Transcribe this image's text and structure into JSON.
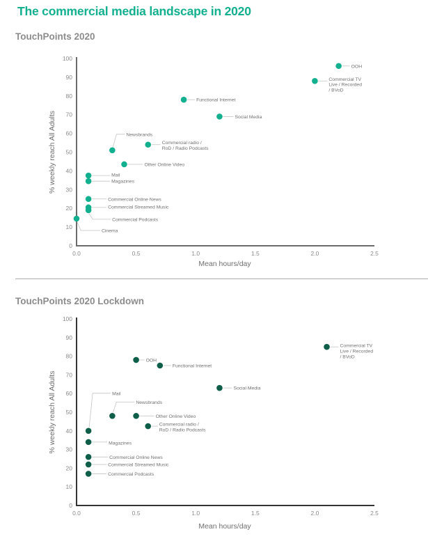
{
  "page": {
    "title": "The commercial media landscape in 2020"
  },
  "chart_data": [
    {
      "type": "scatter",
      "title": "TouchPoints 2020",
      "xlabel": "Mean hours/day",
      "ylabel": "% weekly reach All Adults",
      "xlim": [
        0,
        2.5
      ],
      "ylim": [
        0,
        100
      ],
      "xticks": [
        "0.0",
        "0.5",
        "1.0",
        "1.5",
        "2.0",
        "2.5"
      ],
      "yticks": [
        "0",
        "10",
        "20",
        "30",
        "40",
        "50",
        "60",
        "70",
        "80",
        "90",
        "100"
      ],
      "grid": false,
      "marker_color": "#12b08f",
      "points": [
        {
          "label": "OOH",
          "x": 2.2,
          "y": 96
        },
        {
          "label": "Commercial TV Live / Recorded / BVoD",
          "lines": [
            "Commercial TV",
            "Live / Recorded",
            "/ BVoD"
          ],
          "x": 2.0,
          "y": 88
        },
        {
          "label": "Functional Internet",
          "x": 0.9,
          "y": 78
        },
        {
          "label": "Social Media",
          "x": 1.2,
          "y": 69
        },
        {
          "label": "Newsbrands",
          "x": 0.3,
          "y": 51
        },
        {
          "label": "Commercial radio / RoD / Radio Podcasts",
          "lines": [
            "Commercial radio /",
            "RoD / Radio Podcasts"
          ],
          "x": 0.6,
          "y": 54
        },
        {
          "label": "Other Online Video",
          "x": 0.4,
          "y": 43.5
        },
        {
          "label": "Mail",
          "x": 0.1,
          "y": 37.5
        },
        {
          "label": "Magazines",
          "x": 0.1,
          "y": 34.5
        },
        {
          "label": "Commercial Online News",
          "x": 0.1,
          "y": 25
        },
        {
          "label": "Commercial Streamed Music",
          "x": 0.1,
          "y": 20.5
        },
        {
          "label": "Commercial Podcasts",
          "x": 0.1,
          "y": 19
        },
        {
          "label": "Cinema",
          "x": 0.0,
          "y": 14.5
        }
      ]
    },
    {
      "type": "scatter",
      "title": "TouchPoints 2020 Lockdown",
      "xlabel": "Mean hours/day",
      "ylabel": "% weekly reach All Adults",
      "xlim": [
        0,
        2.5
      ],
      "ylim": [
        0,
        100
      ],
      "xticks": [
        "0.0",
        "0.5",
        "1.0",
        "1.5",
        "2.0",
        "2.5"
      ],
      "yticks": [
        "0",
        "10",
        "20",
        "30",
        "40",
        "50",
        "60",
        "70",
        "80",
        "90",
        "100"
      ],
      "grid": false,
      "marker_color": "#0f5e4a",
      "points": [
        {
          "label": "Commercial TV Live / Recorded / BVoD",
          "lines": [
            "Commercial TV",
            "Live / Recorded",
            "/ BVoD"
          ],
          "x": 2.1,
          "y": 85
        },
        {
          "label": "OOH",
          "x": 0.5,
          "y": 78
        },
        {
          "label": "Functional Internet",
          "x": 0.7,
          "y": 75
        },
        {
          "label": "Social Media",
          "x": 1.2,
          "y": 63
        },
        {
          "label": "Mail",
          "x": 0.1,
          "y": 40
        },
        {
          "label": "Newsbrands",
          "x": 0.3,
          "y": 48
        },
        {
          "label": "Other Online Video",
          "x": 0.5,
          "y": 48
        },
        {
          "label": "Commercial radio / RoD / Radio Podcasts",
          "lines": [
            "Commercial radio /",
            "RoD / Radio Podcasts"
          ],
          "x": 0.6,
          "y": 42.5
        },
        {
          "label": "Magazines",
          "x": 0.1,
          "y": 34
        },
        {
          "label": "Commercial Online News",
          "x": 0.1,
          "y": 26
        },
        {
          "label": "Commercial Streamed Music",
          "x": 0.1,
          "y": 22
        },
        {
          "label": "Commercial Podcasts",
          "x": 0.1,
          "y": 17
        }
      ]
    }
  ]
}
